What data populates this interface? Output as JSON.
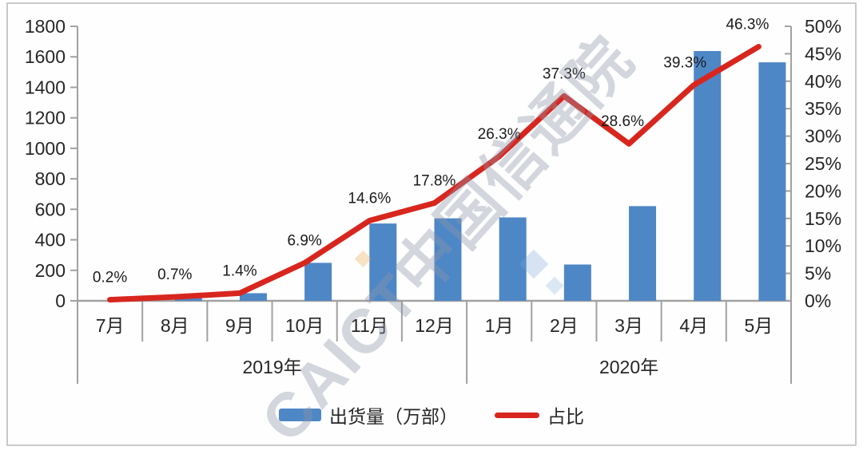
{
  "watermark": {
    "text": "CAICT中国信通院"
  },
  "chart_data": {
    "type": "combo-bar-line",
    "title": "",
    "categories": [
      "7月",
      "8月",
      "9月",
      "10月",
      "11月",
      "12月",
      "1月",
      "2月",
      "3月",
      "4月",
      "5月"
    ],
    "year_groups": [
      {
        "label": "2019年",
        "from": 0,
        "to": 5
      },
      {
        "label": "2020年",
        "from": 6,
        "to": 10
      }
    ],
    "series": [
      {
        "name": "出货量（万部）",
        "type": "bar",
        "axis": "left",
        "color": "#4E87C6",
        "values": [
          7,
          22,
          50,
          249,
          507,
          541,
          547,
          238,
          621,
          1638,
          1564
        ]
      },
      {
        "name": "占比",
        "type": "line",
        "axis": "right",
        "color": "#D8261E",
        "values": [
          0.2,
          0.7,
          1.4,
          6.9,
          14.6,
          17.8,
          26.3,
          37.3,
          28.6,
          39.3,
          46.3
        ],
        "point_labels": [
          "0.2%",
          "0.7%",
          "1.4%",
          "6.9%",
          "14.6%",
          "17.8%",
          "26.3%",
          "37.3%",
          "28.6%",
          "39.3%",
          "46.3%"
        ],
        "label_dx": [
          0,
          0,
          0,
          0,
          0,
          0,
          0,
          0,
          -8,
          -11,
          -14
        ]
      }
    ],
    "left_axis": {
      "min": 0,
      "max": 1800,
      "step": 200,
      "tick_labels": [
        "1800",
        "1600",
        "1400",
        "1200",
        "1000",
        "800",
        "600",
        "400",
        "200",
        "0"
      ]
    },
    "right_axis": {
      "min": 0,
      "max": 50,
      "step": 5,
      "tick_labels": [
        "50%",
        "45%",
        "40%",
        "35%",
        "30%",
        "25%",
        "20%",
        "15%",
        "10%",
        "5%",
        "0%"
      ]
    },
    "grid": false,
    "legend_position": "bottom"
  }
}
